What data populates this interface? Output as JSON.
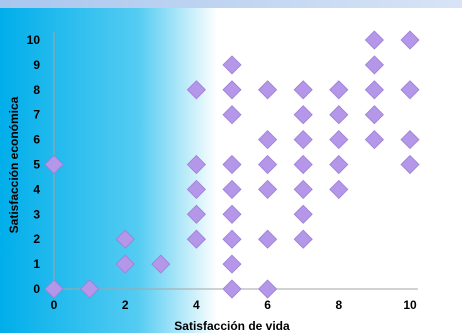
{
  "chart_data": {
    "type": "scatter",
    "xlabel": "Satisfacción de vida",
    "ylabel": "Satisfacción económica",
    "xlim": [
      0,
      10
    ],
    "ylim": [
      0,
      10
    ],
    "x_ticks": [
      "0",
      "2",
      "4",
      "6",
      "8",
      "10"
    ],
    "y_ticks": [
      "0",
      "1",
      "2",
      "3",
      "4",
      "5",
      "6",
      "7",
      "8",
      "9",
      "10"
    ],
    "grid": false,
    "marker": "diamond",
    "colors": {
      "marker": "#b497e8",
      "marker_dark": "#9c7fd6",
      "axis": "#a6a6a6",
      "background_gradient_start": "#00aeea",
      "background_gradient_end": "#ffffff",
      "top_band": "#c8d8f0"
    },
    "points": [
      {
        "x": 0,
        "y": 0
      },
      {
        "x": 0,
        "y": 5
      },
      {
        "x": 1,
        "y": 0
      },
      {
        "x": 2,
        "y": 1
      },
      {
        "x": 2,
        "y": 2
      },
      {
        "x": 3,
        "y": 1
      },
      {
        "x": 4,
        "y": 2
      },
      {
        "x": 4,
        "y": 3
      },
      {
        "x": 4,
        "y": 4
      },
      {
        "x": 4,
        "y": 5
      },
      {
        "x": 4,
        "y": 8
      },
      {
        "x": 5,
        "y": 0
      },
      {
        "x": 5,
        "y": 1
      },
      {
        "x": 5,
        "y": 2
      },
      {
        "x": 5,
        "y": 3
      },
      {
        "x": 5,
        "y": 4
      },
      {
        "x": 5,
        "y": 5
      },
      {
        "x": 5,
        "y": 7
      },
      {
        "x": 5,
        "y": 8
      },
      {
        "x": 5,
        "y": 9
      },
      {
        "x": 6,
        "y": 0
      },
      {
        "x": 6,
        "y": 2
      },
      {
        "x": 6,
        "y": 4
      },
      {
        "x": 6,
        "y": 5
      },
      {
        "x": 6,
        "y": 6
      },
      {
        "x": 6,
        "y": 8
      },
      {
        "x": 7,
        "y": 2
      },
      {
        "x": 7,
        "y": 3
      },
      {
        "x": 7,
        "y": 4
      },
      {
        "x": 7,
        "y": 5
      },
      {
        "x": 7,
        "y": 6
      },
      {
        "x": 7,
        "y": 7
      },
      {
        "x": 7,
        "y": 8
      },
      {
        "x": 8,
        "y": 4
      },
      {
        "x": 8,
        "y": 5
      },
      {
        "x": 8,
        "y": 6
      },
      {
        "x": 8,
        "y": 7
      },
      {
        "x": 8,
        "y": 8
      },
      {
        "x": 9,
        "y": 6
      },
      {
        "x": 9,
        "y": 7
      },
      {
        "x": 9,
        "y": 8
      },
      {
        "x": 9,
        "y": 9
      },
      {
        "x": 9,
        "y": 10
      },
      {
        "x": 10,
        "y": 5
      },
      {
        "x": 10,
        "y": 6
      },
      {
        "x": 10,
        "y": 8
      },
      {
        "x": 10,
        "y": 10
      }
    ]
  }
}
